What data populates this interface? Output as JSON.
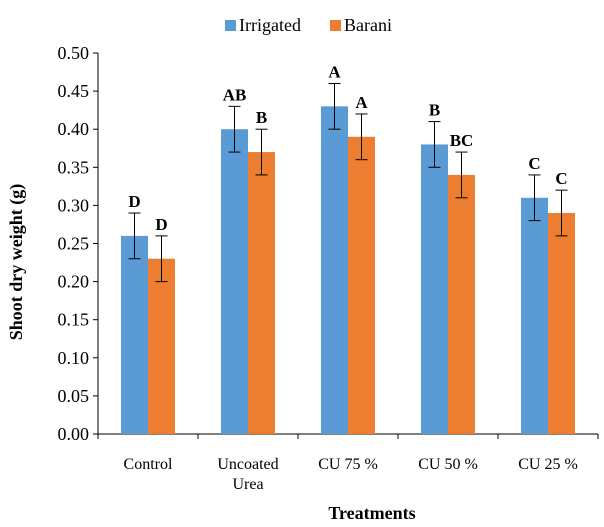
{
  "chart_data": {
    "type": "bar",
    "title": "",
    "xlabel": "Treatments",
    "ylabel": "Shoot dry weight (g)",
    "ylim": [
      0,
      0.5
    ],
    "yticks": [
      "0.00",
      "0.05",
      "0.10",
      "0.15",
      "0.20",
      "0.25",
      "0.30",
      "0.35",
      "0.40",
      "0.45",
      "0.50"
    ],
    "categories": [
      [
        "Control"
      ],
      [
        "Uncoated",
        "Urea"
      ],
      [
        "CU 75 %"
      ],
      [
        "CU 50 %"
      ],
      [
        "CU 25 %"
      ]
    ],
    "series": [
      {
        "name": "Irrigated",
        "color": "#5B9BD5",
        "values": [
          0.26,
          0.4,
          0.43,
          0.38,
          0.31
        ],
        "errors": [
          0.03,
          0.03,
          0.03,
          0.03,
          0.03
        ],
        "letters": [
          "D",
          "AB",
          "A",
          "B",
          "C"
        ]
      },
      {
        "name": "Barani",
        "color": "#ED7D31",
        "values": [
          0.23,
          0.37,
          0.39,
          0.34,
          0.29
        ],
        "errors": [
          0.03,
          0.03,
          0.03,
          0.03,
          0.03
        ],
        "letters": [
          "D",
          "B",
          "A",
          "BC",
          "C"
        ]
      }
    ],
    "grid": false,
    "legend_position": "top-center"
  }
}
